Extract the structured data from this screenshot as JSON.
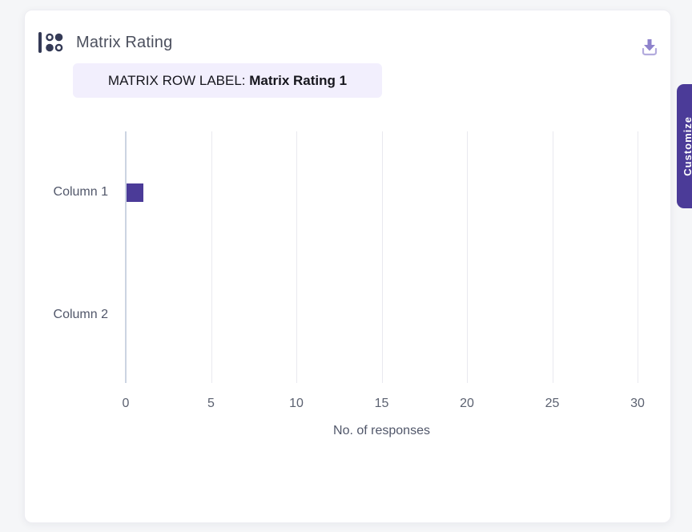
{
  "card": {
    "title": "Matrix Rating",
    "row_label_prefix": "MATRIX ROW LABEL: ",
    "row_label_value": "Matrix Rating 1"
  },
  "icons": {
    "header": "matrix-question-icon",
    "download": "download-icon"
  },
  "side_tab": {
    "label": "Customize",
    "color": "#4b3b98"
  },
  "colors": {
    "bar": "#4b3b98",
    "chip_background": "#f2effd",
    "icon_navy": "#343a56",
    "download_purple": "#8e82cc",
    "download_tray": "#b3abdd",
    "gridline": "#e9e9ef",
    "axis_line": "#ccd4e2",
    "page_background": "#f5f6f8"
  },
  "chart_data": {
    "type": "bar",
    "orientation": "horizontal",
    "title": "Matrix Rating",
    "subtitle": "MATRIX ROW LABEL: Matrix Rating 1",
    "categories": [
      "Column 1",
      "Column 2"
    ],
    "values": [
      1,
      0
    ],
    "xlabel": "No. of responses",
    "ylabel": "",
    "xlim": [
      0,
      30
    ],
    "xticks": [
      0,
      5,
      10,
      15,
      20,
      25,
      30
    ],
    "grid": true,
    "legend": "none",
    "bar_color": "#4b3b98"
  }
}
